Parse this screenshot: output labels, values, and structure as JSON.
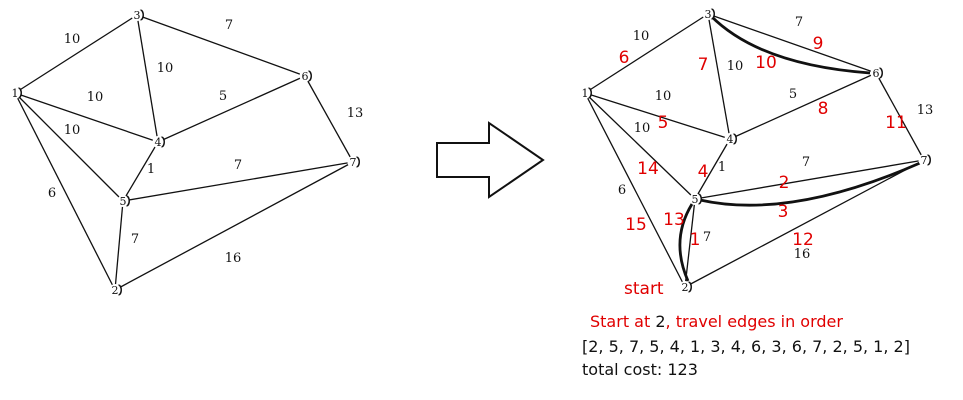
{
  "left_graph": {
    "nodes": [
      {
        "id": "1",
        "label": "1"
      },
      {
        "id": "2",
        "label": "2"
      },
      {
        "id": "3",
        "label": "3"
      },
      {
        "id": "4",
        "label": "4"
      },
      {
        "id": "5",
        "label": "5"
      },
      {
        "id": "6",
        "label": "6"
      },
      {
        "id": "7",
        "label": "7"
      }
    ],
    "edges": [
      {
        "from": "1",
        "to": "3",
        "weight": "10"
      },
      {
        "from": "3",
        "to": "6",
        "weight": "7"
      },
      {
        "from": "3",
        "to": "4",
        "weight": "10"
      },
      {
        "from": "1",
        "to": "4",
        "weight": "10"
      },
      {
        "from": "4",
        "to": "6",
        "weight": "5"
      },
      {
        "from": "6",
        "to": "7",
        "weight": "13"
      },
      {
        "from": "1",
        "to": "5",
        "weight": "10"
      },
      {
        "from": "4",
        "to": "5",
        "weight": "1"
      },
      {
        "from": "5",
        "to": "7",
        "weight": "7"
      },
      {
        "from": "1",
        "to": "2",
        "weight": "6"
      },
      {
        "from": "5",
        "to": "2",
        "weight": "7"
      },
      {
        "from": "2",
        "to": "7",
        "weight": "16"
      }
    ]
  },
  "right_graph": {
    "start_label": "start",
    "order_numbers": [
      "1",
      "2",
      "3",
      "4",
      "5",
      "6",
      "7",
      "8",
      "9",
      "10",
      "11",
      "12",
      "13",
      "14",
      "15"
    ]
  },
  "caption": {
    "line1_prefix": "Start at ",
    "line1_start_node": "2",
    "line1_suffix": ", travel edges in order",
    "sequence": "[2, 5, 7, 5, 4, 1, 3, 4, 6, 3, 6, 7, 2, 5, 1, 2]",
    "total_cost": "total cost: 123"
  }
}
